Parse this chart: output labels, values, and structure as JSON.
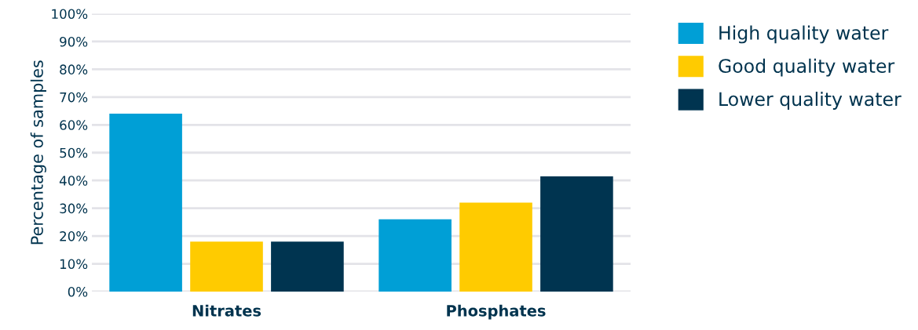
{
  "chart_data": {
    "type": "bar",
    "ylabel": "Percentage of samples",
    "categories": [
      "Nitrates",
      "Phosphates"
    ],
    "series": [
      {
        "name": "High quality water",
        "color": "#009fd6",
        "values": [
          64,
          26
        ]
      },
      {
        "name": "Good quality water",
        "color": "#ffcb00",
        "values": [
          18,
          32
        ]
      },
      {
        "name": "Lower quality water",
        "color": "#003450",
        "values": [
          18,
          41.5
        ]
      }
    ],
    "ylim": [
      0,
      100
    ],
    "yticks": [
      {
        "value": 0,
        "label": "0%"
      },
      {
        "value": 10,
        "label": "10%"
      },
      {
        "value": 20,
        "label": "20%"
      },
      {
        "value": 30,
        "label": "30%"
      },
      {
        "value": 40,
        "label": "40%"
      },
      {
        "value": 50,
        "label": "50%"
      },
      {
        "value": 60,
        "label": "60%"
      },
      {
        "value": 70,
        "label": "70%"
      },
      {
        "value": 80,
        "label": "80%"
      },
      {
        "value": 90,
        "label": "90%"
      },
      {
        "value": 100,
        "label": "100%"
      }
    ],
    "grid": "y",
    "legend": "top right"
  }
}
